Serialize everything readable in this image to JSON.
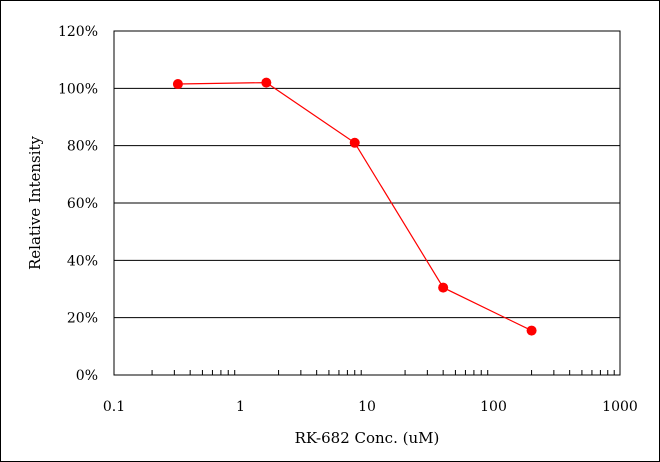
{
  "chart_data": {
    "type": "line",
    "title": "",
    "xlabel": "RK-682 Conc. (uM)",
    "ylabel": "Relative Intensity",
    "x_scale": "log",
    "xlim": [
      0.1,
      1000
    ],
    "ylim": [
      0,
      120
    ],
    "x_ticks": [
      0.1,
      1,
      10,
      100,
      1000
    ],
    "x_tick_labels": [
      "0.1",
      "1",
      "10",
      "100",
      "1000"
    ],
    "y_ticks": [
      0,
      20,
      40,
      60,
      80,
      100,
      120
    ],
    "y_tick_labels": [
      "0%",
      "20%",
      "40%",
      "60%",
      "80%",
      "100%",
      "120%"
    ],
    "grid": "horizontal",
    "legend": "none",
    "series": [
      {
        "x": [
          0.32,
          1.6,
          8,
          40,
          200
        ],
        "y": [
          101.5,
          102,
          81,
          30.5,
          15.5
        ],
        "color": "#ff0000"
      }
    ]
  }
}
